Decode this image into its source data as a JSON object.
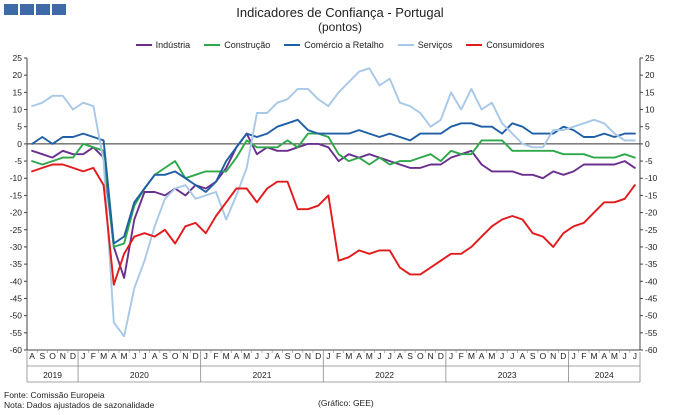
{
  "header": {
    "title": "Indicadores de Confiança - Portugal",
    "subtitle": "(pontos)"
  },
  "footer": {
    "source": "Fonte: Comissão Europeia",
    "note": "Nota: Dados ajustados de sazonalidade",
    "credit": "(Gráfico: GEE)"
  },
  "chart_data": {
    "type": "line",
    "ylim": [
      -60,
      25
    ],
    "y_ticks": [
      25,
      20,
      15,
      10,
      5,
      0,
      -5,
      -10,
      -15,
      -20,
      -25,
      -30,
      -35,
      -40,
      -45,
      -50,
      -55,
      -60
    ],
    "grid": false,
    "legend_position": "top",
    "month_labels": [
      "A",
      "S",
      "O",
      "N",
      "D",
      "J",
      "F",
      "M",
      "A",
      "M",
      "J",
      "J",
      "A",
      "S",
      "O",
      "N",
      "D",
      "J",
      "F",
      "M",
      "A",
      "M",
      "J",
      "J",
      "A",
      "S",
      "O",
      "N",
      "D",
      "J",
      "F",
      "M",
      "A",
      "M",
      "J",
      "J",
      "A",
      "S",
      "O",
      "N",
      "D",
      "J",
      "F",
      "M",
      "A",
      "M",
      "J",
      "J",
      "A",
      "S",
      "O",
      "N",
      "D",
      "J",
      "F",
      "M",
      "A",
      "M",
      "J",
      "J"
    ],
    "years": [
      {
        "label": "2019",
        "start": 0,
        "end": 4
      },
      {
        "label": "2020",
        "start": 5,
        "end": 16
      },
      {
        "label": "2021",
        "start": 17,
        "end": 28
      },
      {
        "label": "2022",
        "start": 29,
        "end": 40
      },
      {
        "label": "2023",
        "start": 41,
        "end": 52
      },
      {
        "label": "2024",
        "start": 53,
        "end": 59
      }
    ],
    "series": [
      {
        "name": "Indústria",
        "color": "#6a2f8f",
        "values": [
          -2,
          -3,
          -4,
          -2,
          -3,
          -3,
          -1,
          -4,
          -30,
          -39,
          -22,
          -14,
          -14,
          -15,
          -13,
          -15,
          -12,
          -13,
          -11,
          -7,
          -1,
          3,
          -3,
          -1,
          -2,
          -2,
          -1,
          0,
          0,
          -1,
          -5,
          -3,
          -4,
          -3,
          -4,
          -5,
          -6,
          -7,
          -7,
          -6,
          -6,
          -4,
          -3,
          -2,
          -6,
          -8,
          -8,
          -8,
          -9,
          -9,
          -10,
          -8,
          -9,
          -8,
          -6,
          -6,
          -6,
          -6,
          -5,
          -7
        ]
      },
      {
        "name": "Construção",
        "color": "#2ea84a",
        "values": [
          -5,
          -6,
          -5,
          -4,
          -4,
          0,
          -1,
          -2,
          -30,
          -29,
          -18,
          -13,
          -9,
          -7,
          -5,
          -10,
          -9,
          -8,
          -8,
          -8,
          -4,
          1,
          -1,
          -1,
          -1,
          1,
          -1,
          3,
          3,
          2,
          -3,
          -5,
          -4,
          -6,
          -4,
          -6,
          -5,
          -5,
          -4,
          -3,
          -5,
          -2,
          -3,
          -3,
          1,
          1,
          1,
          -2,
          -2,
          -2,
          -2,
          -2,
          -3,
          -3,
          -3,
          -4,
          -4,
          -4,
          -3,
          -4
        ]
      },
      {
        "name": "Comércio a Retalho",
        "color": "#1f5fa6",
        "values": [
          0,
          2,
          0,
          2,
          2,
          3,
          2,
          1,
          -29,
          -27,
          -17,
          -13,
          -9,
          -9,
          -8,
          -10,
          -12,
          -14,
          -11,
          -5,
          -1,
          3,
          2,
          3,
          5,
          6,
          7,
          4,
          3,
          3,
          3,
          3,
          4,
          3,
          2,
          3,
          2,
          1,
          3,
          3,
          3,
          5,
          6,
          6,
          5,
          5,
          3,
          6,
          5,
          3,
          3,
          3,
          5,
          4,
          2,
          2,
          3,
          2,
          3,
          3
        ]
      },
      {
        "name": "Serviços",
        "color": "#a8c8e8",
        "values": [
          11,
          12,
          14,
          14,
          10,
          12,
          11,
          -5,
          -52,
          -56,
          -42,
          -34,
          -24,
          -16,
          -13,
          -12,
          -16,
          -15,
          -14,
          -22,
          -15,
          -7,
          9,
          9,
          12,
          13,
          16,
          16,
          13,
          11,
          15,
          18,
          21,
          22,
          17,
          19,
          12,
          11,
          9,
          5,
          7,
          15,
          10,
          16,
          10,
          12,
          6,
          3,
          0,
          -1,
          -1,
          4,
          4,
          5,
          6,
          7,
          6,
          3,
          1,
          1
        ]
      },
      {
        "name": "Consumidores",
        "color": "#e31a1c",
        "values": [
          -8,
          -7,
          -6,
          -6,
          -7,
          -8,
          -7,
          -12,
          -41,
          -32,
          -27,
          -26,
          -27,
          -25,
          -29,
          -24,
          -23,
          -26,
          -21,
          -17,
          -13,
          -13,
          -17,
          -13,
          -11,
          -11,
          -19,
          -19,
          -18,
          -15,
          -34,
          -33,
          -31,
          -32,
          -31,
          -31,
          -36,
          -38,
          -38,
          -36,
          -34,
          -32,
          -32,
          -30,
          -27,
          -24,
          -22,
          -21,
          -22,
          -26,
          -27,
          -30,
          -26,
          -24,
          -23,
          -20,
          -17,
          -17,
          -16,
          -12
        ]
      }
    ]
  }
}
